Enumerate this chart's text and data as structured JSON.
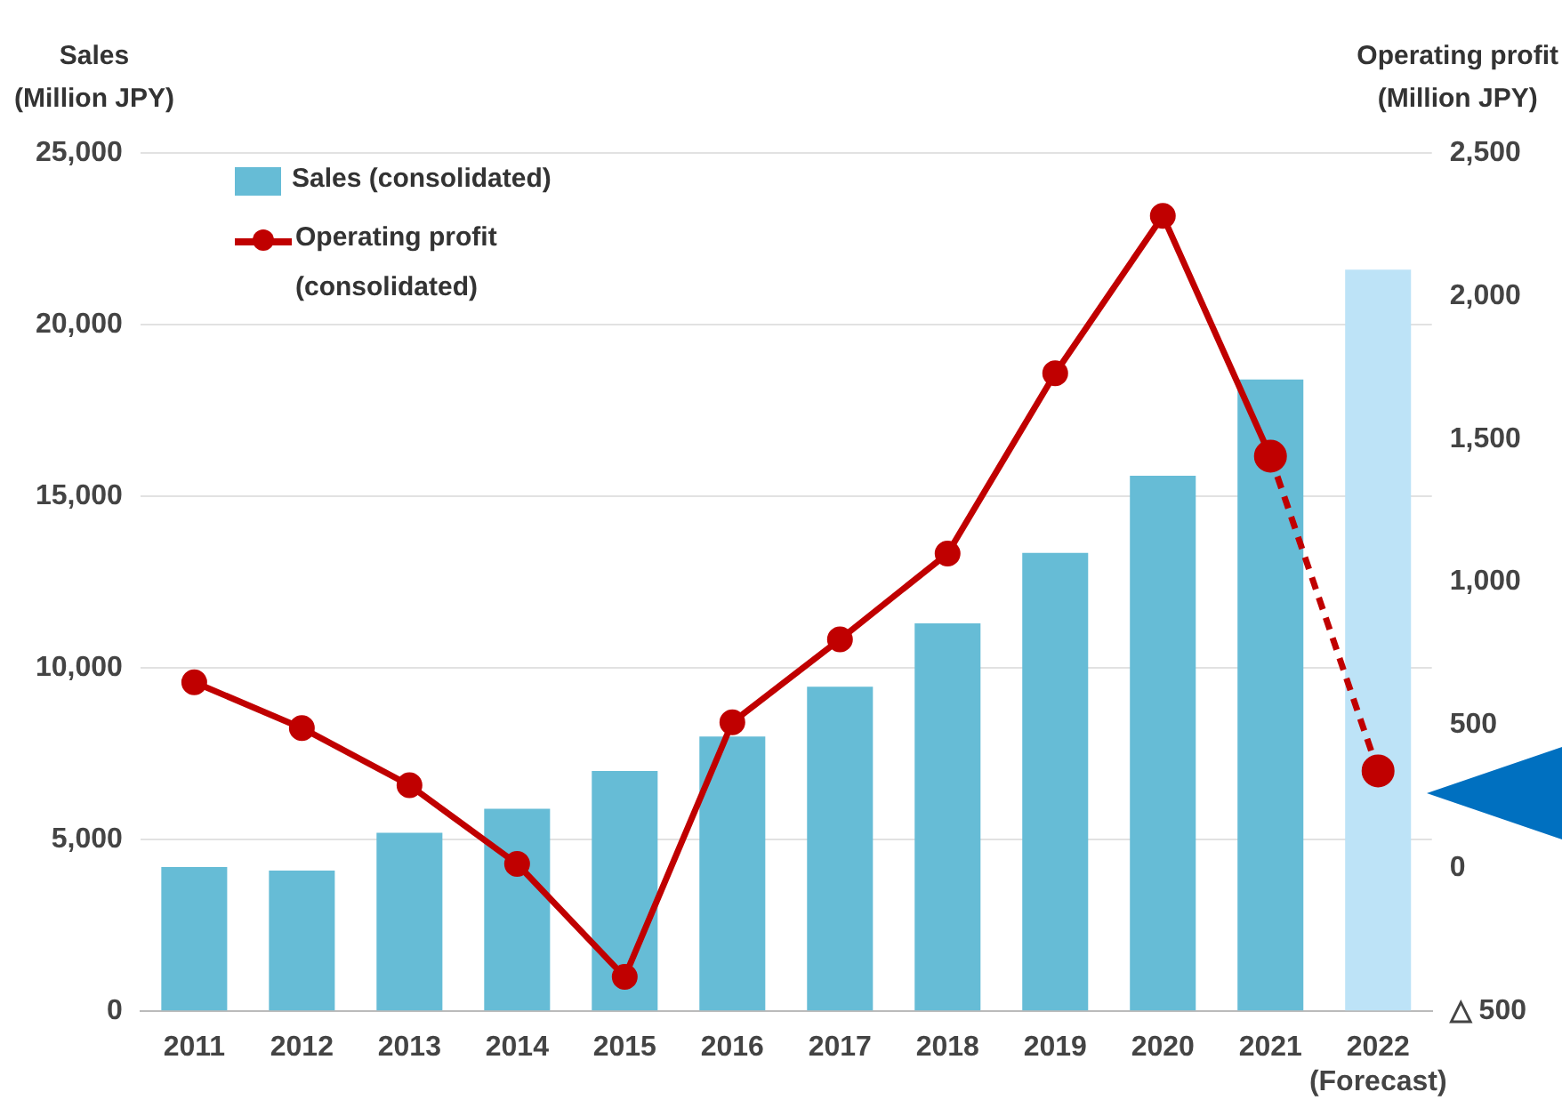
{
  "chart_data": {
    "type": "bar",
    "ylabel": "Sales\n(Million JPY)",
    "y2label": "Operating profit\n(Million JPY)",
    "categories": [
      "2011",
      "2012",
      "2013",
      "2014",
      "2015",
      "2016",
      "2017",
      "2018",
      "2019",
      "2020",
      "2021",
      "2022\n(Forecast)"
    ],
    "series": [
      {
        "name": "Sales (consolidated)",
        "color": "#66bcd6",
        "colors": [
          "#66bcd6",
          "#66bcd6",
          "#66bcd6",
          "#66bcd6",
          "#66bcd6",
          "#66bcd6",
          "#66bcd6",
          "#66bcd6",
          "#66bcd6",
          "#66bcd6",
          "#66bcd6",
          "#bde3f7"
        ],
        "values": [
          4200,
          4100,
          5200,
          5900,
          7000,
          8000,
          9450,
          11300,
          13350,
          15600,
          18400,
          21600
        ]
      },
      {
        "name": "Operating profit (consolidated)",
        "type": "line",
        "axis": "y2",
        "color": "#c00000",
        "marker": "circle",
        "line_style": "solid",
        "values": [
          650,
          490,
          290,
          15,
          -380,
          510,
          800,
          1100,
          1730,
          2280,
          1440,
          null
        ]
      },
      {
        "type": "line",
        "axis": "y2",
        "color": "#c00000",
        "marker": "circle",
        "line_style": "dashed",
        "values": [
          null,
          null,
          null,
          null,
          null,
          null,
          null,
          null,
          null,
          null,
          1440,
          340
        ]
      }
    ],
    "ylim": [
      0,
      25000
    ],
    "yticks": [
      0,
      {
        "value": 5000,
        "label": "5,000"
      },
      {
        "value": 10000,
        "label": "10,000"
      },
      {
        "value": 15000,
        "label": "15,000"
      },
      {
        "value": 20000,
        "label": "20,000"
      },
      {
        "value": 25000,
        "label": "25,000"
      }
    ],
    "y2lim": [
      -500,
      2500
    ],
    "y2ticks": [
      {
        "value": -500,
        "label": "△ 500"
      },
      0,
      500,
      {
        "value": 1000,
        "label": "1,000"
      },
      {
        "value": 1500,
        "label": "1,500"
      },
      {
        "value": 2000,
        "label": "2,000"
      },
      {
        "value": 2500,
        "label": "2,500"
      }
    ],
    "grid": "y",
    "legend": "top left"
  }
}
